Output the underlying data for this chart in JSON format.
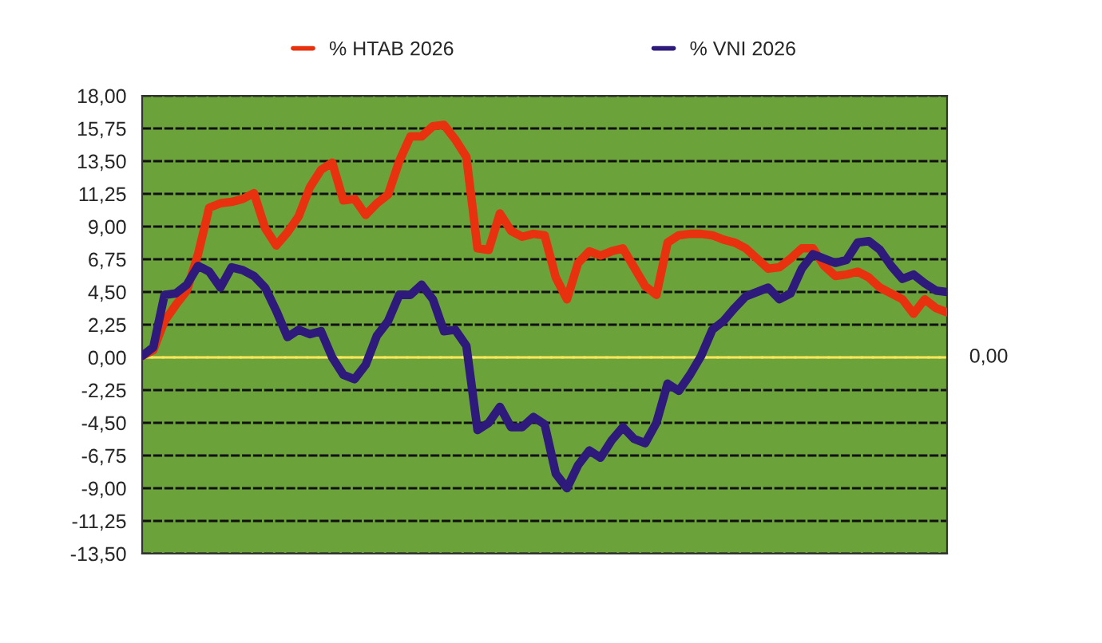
{
  "chart_data": {
    "type": "line",
    "categories": [
      null,
      null,
      null,
      null,
      null,
      null,
      null,
      null,
      null,
      null,
      null,
      null,
      null,
      null,
      null,
      null,
      null,
      null,
      null,
      null,
      null,
      null,
      null,
      null,
      null,
      null,
      null,
      null,
      null,
      null,
      null,
      null,
      null,
      null,
      null,
      null,
      null,
      null,
      null,
      null,
      null,
      null,
      null,
      null,
      null,
      null,
      null,
      null,
      null,
      null,
      null,
      null,
      null,
      null,
      null,
      null,
      null,
      null,
      null,
      null,
      null,
      null,
      null,
      null,
      null,
      null,
      null,
      null,
      null,
      null,
      null,
      null,
      null
    ],
    "series": [
      {
        "name": "% HTAB 2026",
        "color": "#e8320f",
        "values": [
          0.1,
          0.5,
          2.5,
          3.6,
          4.6,
          7.1,
          10.3,
          10.6,
          10.7,
          10.9,
          11.3,
          8.9,
          7.7,
          8.6,
          9.7,
          11.7,
          12.9,
          13.4,
          10.8,
          10.9,
          9.8,
          10.6,
          11.2,
          13.5,
          15.2,
          15.2,
          15.9,
          16.0,
          15.0,
          13.8,
          7.5,
          7.4,
          9.9,
          8.7,
          8.3,
          8.5,
          8.4,
          5.5,
          4.0,
          6.5,
          7.3,
          7.0,
          7.3,
          7.5,
          6.2,
          4.9,
          4.3,
          7.9,
          8.4,
          8.5,
          8.5,
          8.4,
          8.1,
          7.9,
          7.5,
          6.8,
          6.1,
          6.2,
          6.8,
          7.5,
          7.5,
          6.3,
          5.6,
          5.7,
          5.9,
          5.5,
          4.8,
          4.4,
          4.0,
          3.0,
          4.0,
          3.4,
          3.1
        ]
      },
      {
        "name": "% VNI 2026",
        "color": "#2e1a7a",
        "values": [
          0.1,
          0.7,
          4.3,
          4.4,
          5.0,
          6.3,
          5.9,
          4.8,
          6.2,
          6.0,
          5.6,
          4.8,
          3.2,
          1.4,
          1.9,
          1.6,
          1.8,
          0.0,
          -1.2,
          -1.5,
          -0.5,
          1.5,
          2.5,
          4.3,
          4.3,
          5.0,
          4.0,
          1.8,
          1.9,
          0.8,
          -5.0,
          -4.5,
          -3.4,
          -4.8,
          -4.8,
          -4.1,
          -4.6,
          -8.0,
          -9.0,
          -7.4,
          -6.4,
          -6.9,
          -5.7,
          -4.8,
          -5.6,
          -5.9,
          -4.5,
          -1.8,
          -2.3,
          -1.2,
          0.1,
          1.9,
          2.5,
          3.4,
          4.2,
          4.5,
          4.8,
          4.0,
          4.4,
          6.1,
          7.1,
          6.8,
          6.5,
          6.7,
          7.9,
          8.0,
          7.4,
          6.3,
          5.4,
          5.7,
          5.1,
          4.6,
          4.5
        ]
      }
    ],
    "ylim": [
      -13.5,
      18
    ],
    "yticks": [
      {
        "value": -13.5,
        "label": "-13,50"
      },
      {
        "value": -11.25,
        "label": "-11,25"
      },
      {
        "value": -9,
        "label": "-9,00"
      },
      {
        "value": -6.75,
        "label": "-6,75"
      },
      {
        "value": -4.5,
        "label": "-4,50"
      },
      {
        "value": -2.25,
        "label": "-2,25"
      },
      {
        "value": 0,
        "label": "0,00"
      },
      {
        "value": 2.25,
        "label": "2,25"
      },
      {
        "value": 4.5,
        "label": "4,50"
      },
      {
        "value": 6.75,
        "label": "6,75"
      },
      {
        "value": 9,
        "label": "9,00"
      },
      {
        "value": 11.25,
        "label": "11,25"
      },
      {
        "value": 13.5,
        "label": "13,50"
      },
      {
        "value": 15.75,
        "label": "15,75"
      },
      {
        "value": 18,
        "label": "18,00"
      }
    ],
    "ref_lines": [
      {
        "axis": "y",
        "value": 0,
        "label": "0,00",
        "color": "#f2e85a"
      }
    ],
    "grid": "y",
    "legend": "top",
    "tick_labels": "y",
    "line_style": "solid",
    "marker": "none"
  }
}
